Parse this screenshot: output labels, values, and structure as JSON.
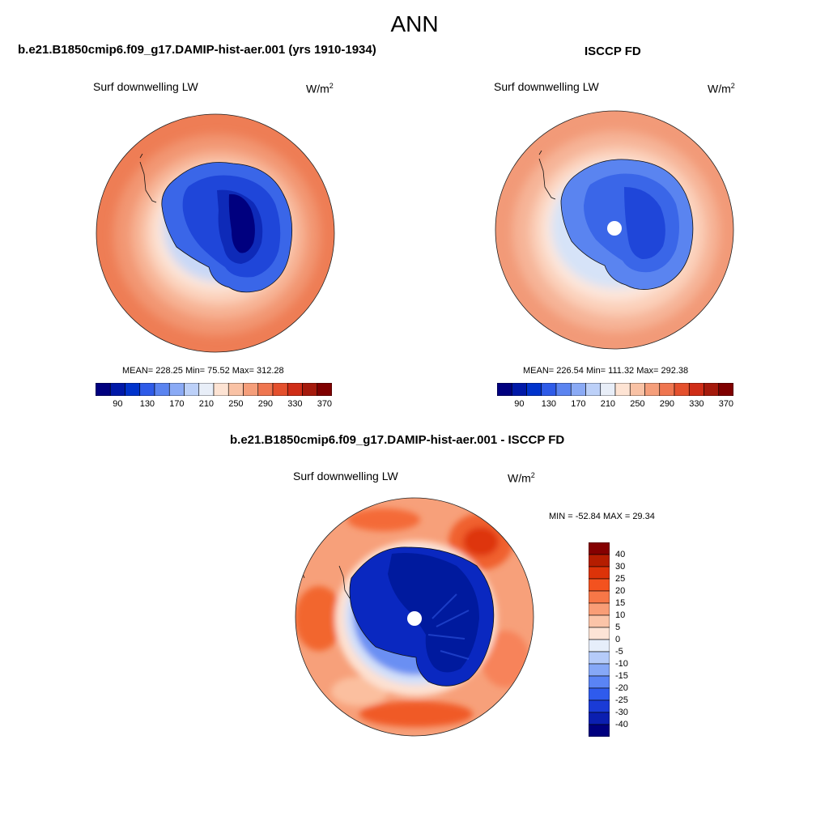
{
  "season": "ANN",
  "panels": [
    {
      "title": "b.e21.B1850cmip6.f09_g17.DAMIP-hist-aer.001 (yrs 1910-1934)",
      "variable": "Surf downwelling LW",
      "units_base": "W/m",
      "units_exp": "2",
      "stats": "MEAN= 228.25  Min=  75.52  Max= 312.28",
      "mean": 228.25,
      "min": 75.52,
      "max": 312.28
    },
    {
      "title": "ISCCP FD",
      "variable": "Surf downwelling LW",
      "units_base": "W/m",
      "units_exp": "2",
      "stats": "MEAN= 226.54  Min= 111.32  Max= 292.38",
      "mean": 226.54,
      "min": 111.32,
      "max": 292.38
    },
    {
      "title": "b.e21.B1850cmip6.f09_g17.DAMIP-hist-aer.001 - ISCCP FD",
      "variable": "Surf downwelling LW",
      "units_base": "W/m",
      "units_exp": "2",
      "stats": "MIN = -52.84 MAX =  29.34",
      "min": -52.84,
      "max": 29.34
    }
  ],
  "abs_colorbar": {
    "colors": [
      "#00007f",
      "#0019a8",
      "#0033cc",
      "#2e5be8",
      "#5b84f0",
      "#8aaaf5",
      "#bcd0f8",
      "#e8eef8",
      "#fde3d3",
      "#f9c2a5",
      "#f59e7a",
      "#ef7650",
      "#e4502d",
      "#cf2d17",
      "#a51a0c",
      "#7f0000"
    ],
    "labels": [
      "90",
      "130",
      "170",
      "210",
      "250",
      "290",
      "330",
      "370"
    ]
  },
  "diff_colorbar": {
    "colors": [
      "#00007f",
      "#0b1fb0",
      "#1a3bd6",
      "#2f5bed",
      "#5a84f5",
      "#86a8f7",
      "#b5cbf9",
      "#e6eefa",
      "#fde4d6",
      "#fbc4a8",
      "#f99d76",
      "#f77747",
      "#f3521f",
      "#dd3309",
      "#b51d00",
      "#850000"
    ],
    "labels": [
      "40",
      "30",
      "25",
      "20",
      "15",
      "10",
      "5",
      "0",
      "-5",
      "-10",
      "-15",
      "-20",
      "-25",
      "-30",
      "-40"
    ]
  }
}
